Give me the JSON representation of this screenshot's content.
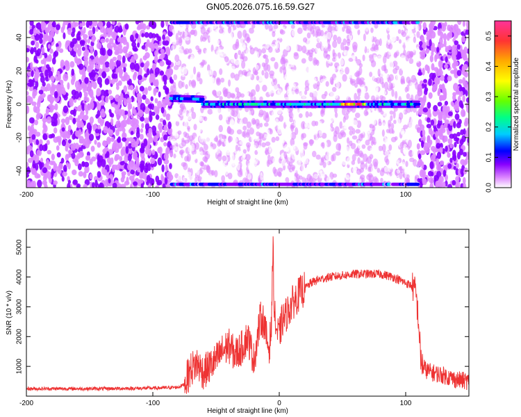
{
  "title": "GN05.2026.075.16.59.G27",
  "chart_data": [
    {
      "type": "heatmap",
      "title": "",
      "xlabel": "Height of straight line (km)",
      "ylabel": "Frequency (Hz)",
      "xlim": [
        -200,
        150
      ],
      "ylim": [
        -50,
        50
      ],
      "xticks": [
        -200,
        -100,
        0,
        100
      ],
      "yticks": [
        -40,
        -20,
        0,
        20,
        40
      ],
      "colorbar": {
        "label": "Normalized spectral amplitude",
        "range": [
          0,
          0.55
        ],
        "ticks": [
          0,
          0.1,
          0.2,
          0.3,
          0.4,
          0.5
        ],
        "colors": [
          "#ffffff",
          "#dd88ff",
          "#8800ff",
          "#0000ff",
          "#00ccff",
          "#00ff88",
          "#66ff00",
          "#ffff00",
          "#ffaa00",
          "#ff3333",
          "#ff3399"
        ]
      },
      "features": {
        "signal_band_hz": 0,
        "signal_start_km": -85,
        "signal_end_km": 110,
        "peak_amplitude_near_km": 60,
        "lower_edge_band_hz": -48,
        "upper_edge_band_hz": 49
      }
    },
    {
      "type": "line",
      "title": "",
      "xlabel": "Height of straight line (km)",
      "ylabel": "SNR (10 * v/v)",
      "xlim": [
        -200,
        150
      ],
      "ylim": [
        0,
        5600
      ],
      "xticks": [
        -200,
        -100,
        0,
        100
      ],
      "yticks": [
        1000,
        2000,
        3000,
        4000,
        5000
      ],
      "color": "#ee3333",
      "series": [
        {
          "x": [
            -200,
            -180,
            -160,
            -140,
            -120,
            -100,
            -90,
            -80,
            -75,
            -70,
            -65,
            -60,
            -55,
            -50,
            -45,
            -40,
            -35,
            -30,
            -25,
            -20,
            -15,
            -12,
            -10,
            -8,
            -6,
            -5,
            -4,
            -2,
            0,
            2,
            5,
            10,
            15,
            20,
            25,
            30,
            35,
            40,
            50,
            60,
            70,
            80,
            90,
            100,
            105,
            108,
            110,
            112,
            115,
            120,
            130,
            140,
            150
          ],
          "values": [
            250,
            250,
            250,
            250,
            260,
            270,
            280,
            300,
            400,
            900,
            1100,
            800,
            1000,
            1200,
            1500,
            1700,
            1400,
            1600,
            2000,
            1200,
            2600,
            2500,
            1900,
            1600,
            2500,
            5400,
            2800,
            2200,
            2000,
            2500,
            2700,
            3100,
            3400,
            3600,
            3800,
            3900,
            3950,
            4000,
            4050,
            4100,
            4100,
            4100,
            4000,
            3800,
            3700,
            3500,
            2600,
            1200,
            900,
            800,
            700,
            550,
            500
          ]
        }
      ]
    }
  ]
}
